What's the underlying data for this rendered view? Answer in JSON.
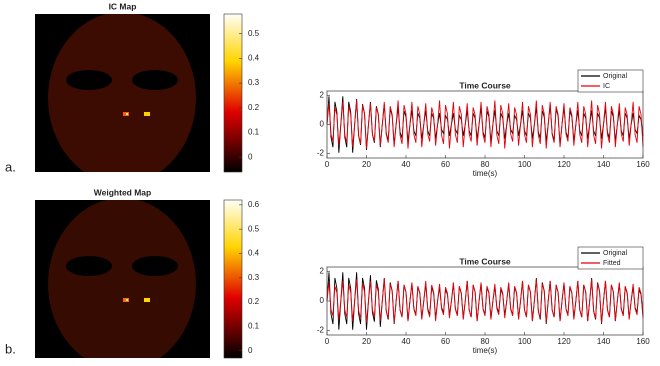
{
  "chart_data": [
    {
      "type": "heatmap",
      "title": "IC Map",
      "panel_label": "a.",
      "clim": [
        -0.06,
        0.58
      ],
      "colorbar_ticks": [
        0,
        0.1,
        0.2,
        0.3,
        0.4,
        0.5
      ]
    },
    {
      "type": "line",
      "title": "Time Course",
      "xlabel": "time(s)",
      "x": [
        0,
        1,
        2,
        3,
        4,
        5,
        6,
        7,
        8,
        9,
        10,
        11,
        12,
        13,
        14,
        15,
        16,
        17,
        18,
        19,
        20,
        21,
        22,
        23,
        24,
        25,
        26,
        27,
        28,
        29,
        30,
        31,
        32,
        33,
        34,
        35,
        36,
        37,
        38,
        39,
        40,
        41,
        42,
        43,
        44,
        45,
        46,
        47,
        48,
        49,
        50,
        51,
        52,
        53,
        54,
        55,
        56,
        57,
        58,
        59,
        60,
        61,
        62,
        63,
        64,
        65,
        66,
        67,
        68,
        69,
        70,
        71,
        72,
        73,
        74,
        75,
        76,
        77,
        78,
        79,
        80,
        81,
        82,
        83,
        84,
        85,
        86,
        87,
        88,
        89,
        90,
        91,
        92,
        93,
        94,
        95,
        96,
        97,
        98,
        99,
        100,
        101,
        102,
        103,
        104,
        105,
        106,
        107,
        108,
        109,
        110,
        111,
        112,
        113,
        114,
        115,
        116,
        117,
        118,
        119,
        120,
        121,
        122,
        123,
        124,
        125,
        126,
        127,
        128,
        129,
        130,
        131,
        132,
        133,
        134,
        135,
        136,
        137,
        138,
        139,
        140,
        141,
        142,
        143,
        144,
        145,
        146,
        147,
        148,
        149,
        150,
        151,
        152,
        153,
        154,
        155,
        156,
        157,
        158,
        159,
        160
      ],
      "series": [
        {
          "name": "Original",
          "color": "#000000",
          "values": [
            0,
            1.94,
            -0.86,
            -1.56,
            1.56,
            0.86,
            -1.94,
            0,
            1.94,
            -0.86,
            -1.56,
            1.56,
            0.86,
            -1.94,
            0,
            1.75,
            -0.77,
            -1.4,
            1.4,
            0.77,
            -1.75,
            0,
            1.55,
            -0.69,
            -1.25,
            1.25,
            0.69,
            -1.55,
            0,
            1.36,
            -0.6,
            -1.09,
            1.09,
            0.6,
            -1.36,
            0,
            1.16,
            -0.52,
            -0.94,
            0.94,
            0.52,
            -1.16,
            0,
            0.97,
            -0.43,
            -0.78,
            0.78,
            0.43,
            -0.97,
            0,
            0.97,
            -0.43,
            -0.78,
            0.78,
            0.43,
            -0.97,
            0,
            0.78,
            -0.34,
            -0.62,
            0.62,
            0.34,
            -0.78,
            0,
            0.78,
            -0.34,
            -0.62,
            0.62,
            0.34,
            -0.78,
            0,
            0.97,
            -0.43,
            -0.78,
            0.78,
            0.43,
            -0.97,
            0,
            1.16,
            -0.52,
            -0.94,
            0.94,
            0.52,
            -1.16,
            0,
            0.97,
            -0.43,
            -0.78,
            0.78,
            0.43,
            -0.97,
            0,
            0.78,
            -0.34,
            -0.62,
            0.62,
            0.34,
            -0.78,
            0,
            0.97,
            -0.43,
            -0.78,
            0.78,
            0.43,
            -0.97,
            0,
            1.16,
            -0.52,
            -0.94,
            0.94,
            0.52,
            -1.16,
            0,
            1.36,
            -0.6,
            -1.09,
            1.09,
            0.6,
            -1.36,
            0,
            1.16,
            -0.52,
            -0.94,
            0.94,
            0.52,
            -1.16,
            0,
            0.97,
            -0.43,
            -0.78,
            0.78,
            0.43,
            -0.97,
            0,
            0.97,
            -0.43,
            -0.78,
            0.78,
            0.43,
            -0.97,
            0,
            1.16,
            -0.52,
            -0.94,
            0.94,
            0.52,
            -1.16,
            0,
            0.97,
            -0.43,
            -0.78,
            0.78,
            0.43,
            -0.97,
            0,
            0.78,
            -0.34,
            -0.62,
            0.62,
            0.34,
            -0.78
          ]
        },
        {
          "name": "IC",
          "color": "#e8000b",
          "values": [
            0,
            1.46,
            -0.65,
            -1.17,
            1.17,
            0.65,
            -1.46,
            0,
            1.55,
            -0.69,
            -1.25,
            1.25,
            0.69,
            -1.55,
            0,
            1.65,
            -0.73,
            -1.33,
            1.33,
            0.73,
            -1.65,
            0,
            1.46,
            -0.65,
            -1.17,
            1.17,
            0.65,
            -1.46,
            0,
            1.55,
            -0.69,
            -1.25,
            1.25,
            0.69,
            -1.55,
            0,
            1.65,
            -0.73,
            -1.33,
            1.33,
            0.73,
            -1.65,
            0,
            1.55,
            -0.69,
            -1.25,
            1.25,
            0.69,
            -1.55,
            0,
            1.46,
            -0.65,
            -1.17,
            1.17,
            0.65,
            -1.46,
            0,
            1.65,
            -0.73,
            -1.33,
            1.33,
            0.73,
            -1.65,
            0,
            1.55,
            -0.69,
            -1.25,
            1.25,
            0.69,
            -1.55,
            0,
            1.46,
            -0.65,
            -1.17,
            1.17,
            0.65,
            -1.46,
            0,
            1.55,
            -0.69,
            -1.25,
            1.25,
            0.69,
            -1.55,
            0,
            1.65,
            -0.73,
            -1.33,
            1.33,
            0.73,
            -1.65,
            0,
            1.46,
            -0.65,
            -1.17,
            1.17,
            0.65,
            -1.46,
            0,
            1.55,
            -0.69,
            -1.25,
            1.25,
            0.69,
            -1.55,
            0,
            1.65,
            -0.73,
            -1.33,
            1.33,
            0.73,
            -1.65,
            0,
            1.55,
            -0.69,
            -1.25,
            1.25,
            0.69,
            -1.55,
            0,
            1.46,
            -0.65,
            -1.17,
            1.17,
            0.65,
            -1.46,
            0,
            1.55,
            -0.69,
            -1.25,
            1.25,
            0.69,
            -1.55,
            0,
            1.65,
            -0.73,
            -1.33,
            1.33,
            0.73,
            -1.65,
            0,
            1.55,
            -0.69,
            -1.25,
            1.25,
            0.69,
            -1.55,
            0,
            1.46,
            -0.65,
            -1.17,
            1.17,
            0.65,
            -1.46,
            0,
            1.55,
            -0.69,
            -1.25,
            1.25,
            0.69,
            -1.55
          ]
        }
      ],
      "xlim": [
        0,
        160
      ],
      "xticks": [
        0,
        20,
        40,
        60,
        80,
        100,
        120,
        140,
        160
      ],
      "ylim": [
        -2.3,
        2.3
      ],
      "yticks": [
        -2,
        0,
        2
      ],
      "legend": "top-right"
    },
    {
      "type": "heatmap",
      "title": "Weighted Map",
      "panel_label": "b.",
      "clim": [
        -0.03,
        0.62
      ],
      "colorbar_ticks": [
        0,
        0.1,
        0.2,
        0.3,
        0.4,
        0.5,
        0.6
      ]
    },
    {
      "type": "line",
      "title": "Time Course",
      "xlabel": "time(s)",
      "x": [
        0,
        1,
        2,
        3,
        4,
        5,
        6,
        7,
        8,
        9,
        10,
        11,
        12,
        13,
        14,
        15,
        16,
        17,
        18,
        19,
        20,
        21,
        22,
        23,
        24,
        25,
        26,
        27,
        28,
        29,
        30,
        31,
        32,
        33,
        34,
        35,
        36,
        37,
        38,
        39,
        40,
        41,
        42,
        43,
        44,
        45,
        46,
        47,
        48,
        49,
        50,
        51,
        52,
        53,
        54,
        55,
        56,
        57,
        58,
        59,
        60,
        61,
        62,
        63,
        64,
        65,
        66,
        67,
        68,
        69,
        70,
        71,
        72,
        73,
        74,
        75,
        76,
        77,
        78,
        79,
        80,
        81,
        82,
        83,
        84,
        85,
        86,
        87,
        88,
        89,
        90,
        91,
        92,
        93,
        94,
        95,
        96,
        97,
        98,
        99,
        100,
        101,
        102,
        103,
        104,
        105,
        106,
        107,
        108,
        109,
        110,
        111,
        112,
        113,
        114,
        115,
        116,
        117,
        118,
        119,
        120,
        121,
        122,
        123,
        124,
        125,
        126,
        127,
        128,
        129,
        130,
        131,
        132,
        133,
        134,
        135,
        136,
        137,
        138,
        139,
        140,
        141,
        142,
        143,
        144,
        145,
        146,
        147,
        148,
        149,
        150,
        151,
        152,
        153,
        154,
        155,
        156,
        157,
        158,
        159,
        160
      ],
      "series": [
        {
          "name": "Original",
          "color": "#000000",
          "values": [
            0,
            1.94,
            -0.86,
            -1.56,
            1.56,
            0.86,
            -1.94,
            0,
            1.94,
            -0.86,
            -1.56,
            1.56,
            0.86,
            -1.94,
            0,
            1.94,
            -0.86,
            -1.56,
            1.56,
            0.86,
            -1.94,
            0,
            1.75,
            -0.77,
            -1.4,
            1.4,
            0.77,
            -1.75,
            0,
            1.55,
            -0.69,
            -1.25,
            1.25,
            0.69,
            -1.55,
            0,
            1.36,
            -0.6,
            -1.09,
            1.09,
            0.6,
            -1.36,
            0,
            1.16,
            -0.52,
            -0.94,
            0.94,
            0.52,
            -1.16,
            0,
            1.16,
            -0.52,
            -0.94,
            0.94,
            0.52,
            -1.16,
            0,
            0.97,
            -0.43,
            -0.78,
            0.78,
            0.43,
            -0.97,
            0,
            1.16,
            -0.52,
            -0.94,
            0.94,
            0.52,
            -1.16,
            0,
            1.36,
            -0.6,
            -1.09,
            1.09,
            0.6,
            -1.36,
            0,
            1.16,
            -0.52,
            -0.94,
            0.94,
            0.52,
            -1.16,
            0,
            0.97,
            -0.43,
            -0.78,
            0.78,
            0.43,
            -0.97,
            0,
            1.16,
            -0.52,
            -0.94,
            0.94,
            0.52,
            -1.16,
            0,
            1.36,
            -0.6,
            -1.09,
            1.09,
            0.6,
            -1.36,
            0,
            1.55,
            -0.69,
            -1.25,
            1.25,
            0.69,
            -1.55,
            0,
            1.36,
            -0.6,
            -1.09,
            1.09,
            0.6,
            -1.36,
            0,
            1.16,
            -0.52,
            -0.94,
            0.94,
            0.52,
            -1.16,
            0,
            1.36,
            -0.6,
            -1.09,
            1.09,
            0.6,
            -1.36,
            0,
            1.55,
            -0.69,
            -1.25,
            1.25,
            0.69,
            -1.55,
            0,
            1.36,
            -0.6,
            -1.09,
            1.09,
            0.6,
            -1.36,
            0,
            1.16,
            -0.52,
            -0.94,
            0.94,
            0.52,
            -1.16,
            0,
            0.97,
            -0.43,
            -0.78,
            0.78,
            0.43,
            -0.97
          ]
        },
        {
          "name": "Fitted",
          "color": "#e8000b",
          "values": [
            0,
            1.26,
            -0.56,
            -1.01,
            1.01,
            0.56,
            -1.26,
            0,
            1.36,
            -0.6,
            -1.09,
            1.09,
            0.6,
            -1.36,
            0,
            1.46,
            -0.65,
            -1.17,
            1.17,
            0.65,
            -1.46,
            0,
            1.36,
            -0.6,
            -1.09,
            1.09,
            0.6,
            -1.36,
            0,
            1.46,
            -0.65,
            -1.17,
            1.17,
            0.65,
            -1.46,
            0,
            1.36,
            -0.6,
            -1.09,
            1.09,
            0.6,
            -1.36,
            0,
            1.26,
            -0.56,
            -1.01,
            1.01,
            0.56,
            -1.26,
            0,
            1.36,
            -0.6,
            -1.09,
            1.09,
            0.6,
            -1.36,
            0,
            1.16,
            -0.52,
            -0.94,
            0.94,
            0.52,
            -1.16,
            0,
            1.26,
            -0.56,
            -1.01,
            1.01,
            0.56,
            -1.26,
            0,
            1.36,
            -0.6,
            -1.09,
            1.09,
            0.6,
            -1.36,
            0,
            1.26,
            -0.56,
            -1.01,
            1.01,
            0.56,
            -1.26,
            0,
            1.16,
            -0.52,
            -0.94,
            0.94,
            0.52,
            -1.16,
            0,
            1.26,
            -0.56,
            -1.01,
            1.01,
            0.56,
            -1.26,
            0,
            1.36,
            -0.6,
            -1.09,
            1.09,
            0.6,
            -1.36,
            0,
            1.46,
            -0.65,
            -1.17,
            1.17,
            0.65,
            -1.46,
            0,
            1.36,
            -0.6,
            -1.09,
            1.09,
            0.6,
            -1.36,
            0,
            1.26,
            -0.56,
            -1.01,
            1.01,
            0.56,
            -1.26,
            0,
            1.36,
            -0.6,
            -1.09,
            1.09,
            0.6,
            -1.36,
            0,
            1.46,
            -0.65,
            -1.17,
            1.17,
            0.65,
            -1.46,
            0,
            1.36,
            -0.6,
            -1.09,
            1.09,
            0.6,
            -1.36,
            0,
            1.26,
            -0.56,
            -1.01,
            1.01,
            0.56,
            -1.26,
            0,
            1.16,
            -0.52,
            -0.94,
            0.94,
            0.52,
            -1.16
          ]
        }
      ],
      "xlim": [
        0,
        160
      ],
      "xticks": [
        0,
        20,
        40,
        60,
        80,
        100,
        120,
        140,
        160
      ],
      "ylim": [
        -2.3,
        2.3
      ],
      "yticks": [
        -2,
        0,
        2
      ],
      "legend": "top-right"
    }
  ]
}
